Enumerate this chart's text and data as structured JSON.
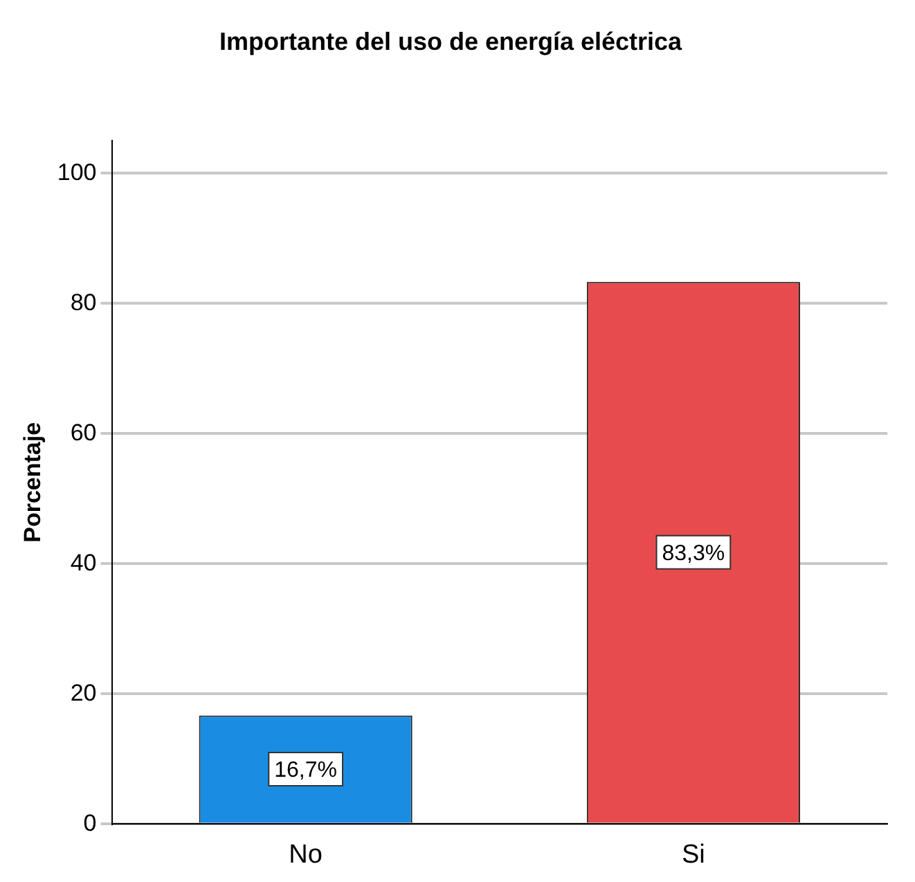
{
  "chart_data": {
    "type": "bar",
    "title": "Importante del uso de energía eléctrica",
    "ylabel": "Porcentaje",
    "categories": [
      "No",
      "Si"
    ],
    "values": [
      16.7,
      83.3
    ],
    "colors": [
      "#1a8de3",
      "#e84b4d"
    ],
    "value_labels": [
      "16,7%",
      "83,3%"
    ],
    "ylim": [
      0,
      105
    ],
    "yticks": [
      0,
      20,
      40,
      60,
      80,
      100
    ],
    "grid": "y",
    "legend": false
  }
}
